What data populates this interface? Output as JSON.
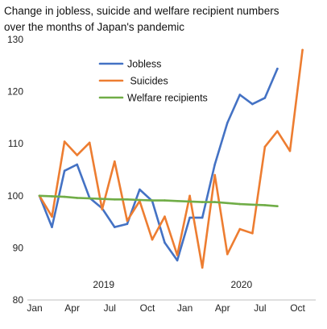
{
  "chart_data": {
    "type": "line",
    "title_lines": [
      "Change in jobless, suicide and welfare recipient numbers",
      "over the months of Japan's pandemic"
    ],
    "x": [
      "2019-01",
      "2019-02",
      "2019-03",
      "2019-04",
      "2019-05",
      "2019-06",
      "2019-07",
      "2019-08",
      "2019-09",
      "2019-10",
      "2019-11",
      "2019-12",
      "2020-01",
      "2020-02",
      "2020-03",
      "2020-04",
      "2020-05",
      "2020-06",
      "2020-07",
      "2020-08",
      "2020-09",
      "2020-10"
    ],
    "x_tick_labels": [
      {
        "month": "2019-01",
        "label": "Jan"
      },
      {
        "month": "2019-04",
        "label": "Apr"
      },
      {
        "month": "2019-07",
        "label": "Jul"
      },
      {
        "month": "2019-10",
        "label": "Oct"
      },
      {
        "month": "2020-01",
        "label": "Jan"
      },
      {
        "month": "2020-04",
        "label": "Apr"
      },
      {
        "month": "2020-07",
        "label": "Jul"
      },
      {
        "month": "2020-10",
        "label": "Oct"
      }
    ],
    "year_labels": [
      {
        "month": "2019-06",
        "label": "2019"
      },
      {
        "month": "2020-05",
        "label": "2020"
      }
    ],
    "ylim": [
      80,
      130
    ],
    "yticks": [
      "80",
      "90",
      "100",
      "110",
      "120",
      "130"
    ],
    "grid": false,
    "legend_placement": "top-center",
    "series": [
      {
        "name": "Jobless",
        "color": "#4472C4",
        "values": [
          100,
          94,
          104.8,
          106,
          99.6,
          97.6,
          94,
          94.6,
          101.2,
          99,
          91,
          87.6,
          95.8,
          95.8,
          106,
          114,
          119.4,
          117.6,
          118.8,
          124.4,
          null,
          null
        ]
      },
      {
        "name": " Suicides",
        "color": "#ED7D31",
        "values": [
          100,
          96,
          110.4,
          107.8,
          110.2,
          97.4,
          106.6,
          95.2,
          99,
          91.6,
          96,
          88.6,
          100,
          86.2,
          104,
          88.8,
          93.6,
          92.8,
          109.4,
          112.4,
          108.6,
          128
        ]
      },
      {
        "name": "Welfare recipients",
        "color": "#70AD47",
        "values": [
          100,
          99.9,
          99.8,
          99.6,
          99.5,
          99.4,
          99.3,
          99.3,
          99.2,
          99.1,
          99.1,
          99,
          98.9,
          98.8,
          98.8,
          98.6,
          98.4,
          98.3,
          98.2,
          98.0,
          null,
          null
        ]
      }
    ]
  }
}
